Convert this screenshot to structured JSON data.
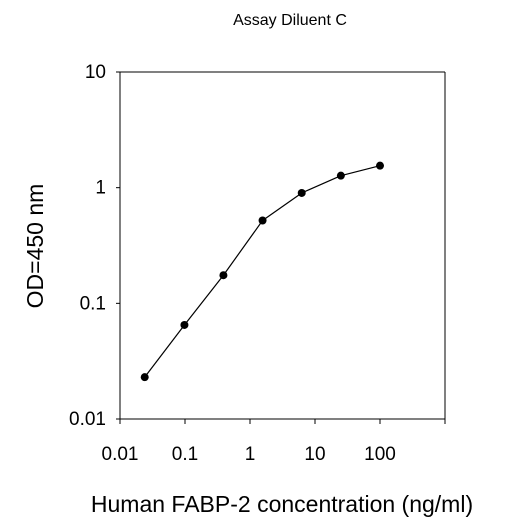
{
  "chart_data": {
    "type": "line",
    "title": "Assay Diluent C",
    "xlabel": "Human FABP-2 concentration (ng/ml)",
    "ylabel": "OD=450 nm",
    "xscale": "log",
    "yscale": "log",
    "xlim": [
      0.01,
      1000
    ],
    "ylim": [
      0.01,
      10
    ],
    "xticks": [
      "0.01",
      "0.1",
      "1",
      "10",
      "100"
    ],
    "yticks": [
      "0.01",
      "0.1",
      "1",
      "10"
    ],
    "grid": false,
    "legend": "none",
    "marker_color": "#000000",
    "series": [
      {
        "x": [
          0.024,
          0.098,
          0.39,
          1.56,
          6.25,
          25,
          100
        ],
        "y": [
          0.023,
          0.065,
          0.175,
          0.52,
          0.9,
          1.27,
          1.55
        ]
      }
    ]
  }
}
